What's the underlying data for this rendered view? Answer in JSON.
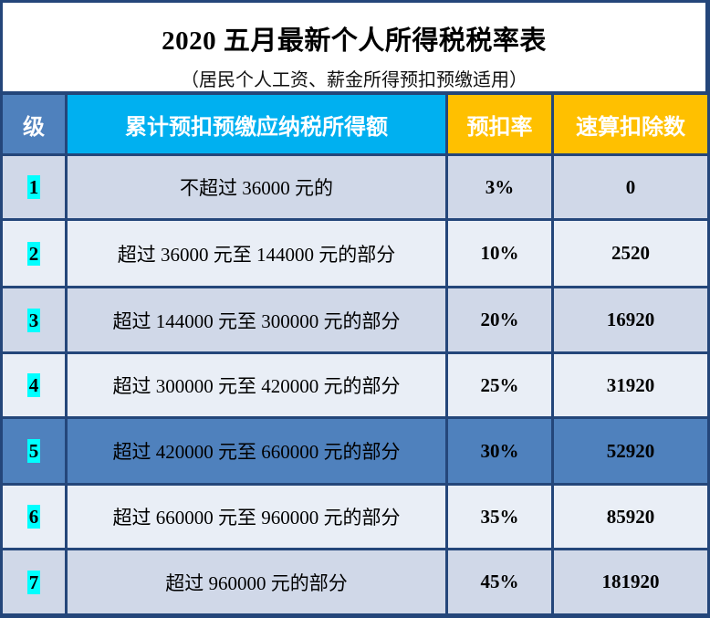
{
  "title": "2020 五月最新个人所得税税率表",
  "subtitle": "（居民个人工资、薪金所得预扣预缴适用）",
  "colors": {
    "header_level": "#4f81bd",
    "header_income": "#00b0f0",
    "header_rate": "#ffc000",
    "row_dark": "#d0d8e8",
    "row_light": "#e9eef6",
    "row_highlight": "#4f81bd",
    "level_highlight": "#00ffff",
    "border": "#24467a"
  },
  "headers": [
    "级",
    "累计预扣预缴应纳税所得额",
    "预扣率",
    "速算扣除数"
  ],
  "rows": [
    {
      "level": "1",
      "range": "不超过 36000 元的",
      "rate": "3%",
      "deduction": "0"
    },
    {
      "level": "2",
      "range": "超过 36000 元至 144000 元的部分",
      "rate": "10%",
      "deduction": "2520"
    },
    {
      "level": "3",
      "range": "超过 144000 元至 300000 元的部分",
      "rate": "20%",
      "deduction": "16920"
    },
    {
      "level": "4",
      "range": "超过 300000 元至 420000 元的部分",
      "rate": "25%",
      "deduction": "31920"
    },
    {
      "level": "5",
      "range": "超过 420000 元至 660000 元的部分",
      "rate": "30%",
      "deduction": "52920"
    },
    {
      "level": "6",
      "range": "超过 660000 元至 960000 元的部分",
      "rate": "35%",
      "deduction": "85920"
    },
    {
      "level": "7",
      "range": "超过 960000 元的部分",
      "rate": "45%",
      "deduction": "181920"
    }
  ]
}
